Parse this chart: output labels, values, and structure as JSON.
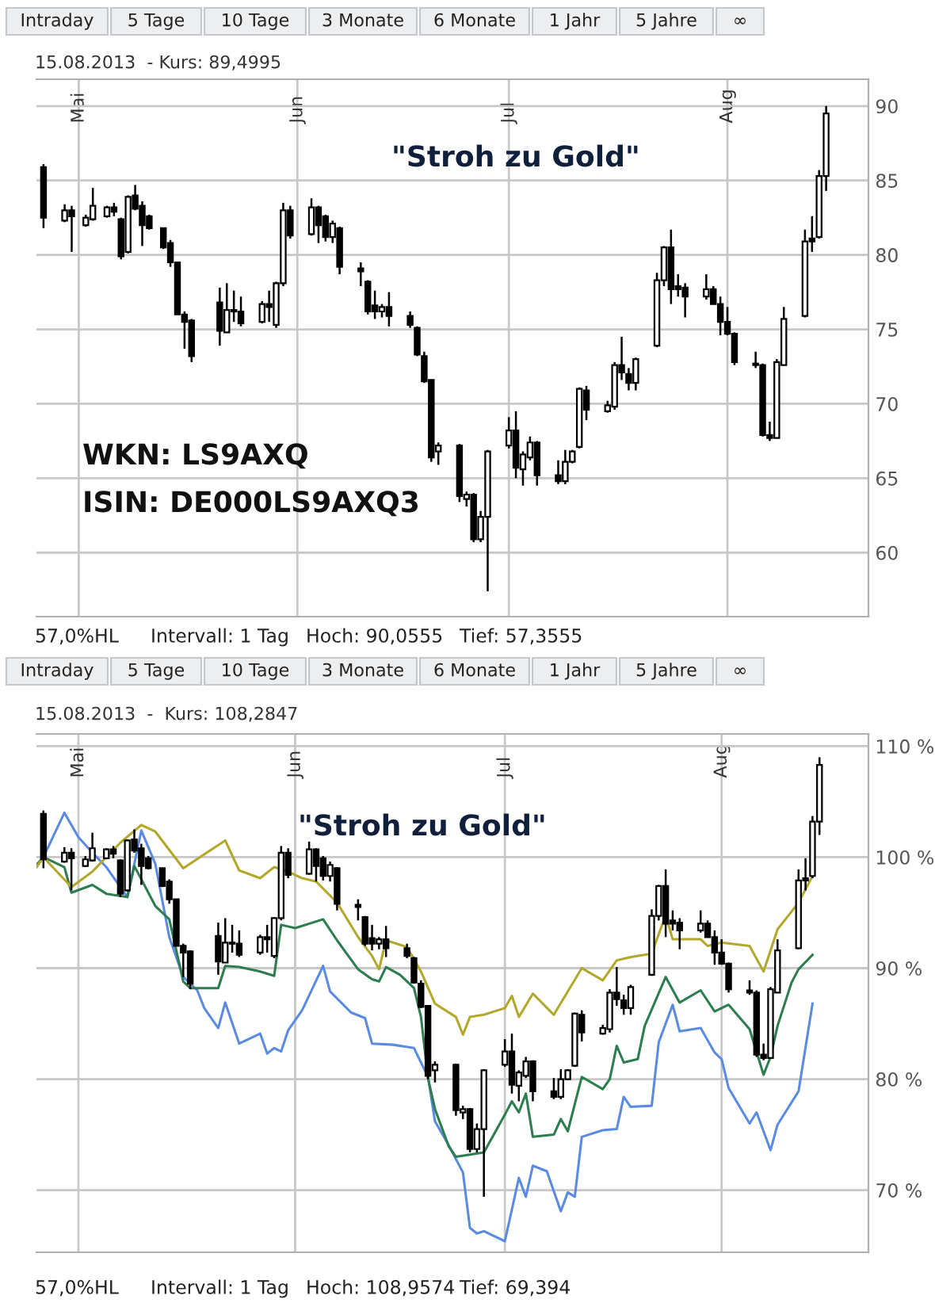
{
  "chart_data": [
    {
      "type": "candlestick",
      "title": "15.08.2013  - Kurs: 89,4995",
      "x": [
        "2013-04-26",
        "2013-04-29",
        "2013-04-30",
        "2013-05-02",
        "2013-05-03",
        "2013-05-05",
        "2013-05-06",
        "2013-05-07",
        "2013-05-08",
        "2013-05-09",
        "2013-05-10",
        "2013-05-11",
        "2013-05-13",
        "2013-05-14",
        "2013-05-15",
        "2013-05-16",
        "2013-05-17",
        "2013-05-21",
        "2013-05-22",
        "2013-05-23",
        "2013-05-24",
        "2013-05-27",
        "2013-05-28",
        "2013-05-29",
        "2013-05-30",
        "2013-05-31",
        "2013-06-03",
        "2013-06-04",
        "2013-06-05",
        "2013-06-06",
        "2013-06-07",
        "2013-06-10",
        "2013-06-11",
        "2013-06-12",
        "2013-06-13",
        "2013-06-14",
        "2013-06-17",
        "2013-06-18",
        "2013-06-19",
        "2013-06-20",
        "2013-06-21",
        "2013-06-24",
        "2013-06-25",
        "2013-06-26",
        "2013-06-27",
        "2013-06-28",
        "2013-07-01",
        "2013-07-02",
        "2013-07-03",
        "2013-07-04",
        "2013-07-05",
        "2013-07-08",
        "2013-07-09",
        "2013-07-10",
        "2013-07-11",
        "2013-07-12",
        "2013-07-15",
        "2013-07-16",
        "2013-07-17",
        "2013-07-18",
        "2013-07-19",
        "2013-07-22",
        "2013-07-23",
        "2013-07-24",
        "2013-07-25",
        "2013-07-26",
        "2013-07-29",
        "2013-07-30",
        "2013-07-31",
        "2013-08-01",
        "2013-08-02",
        "2013-08-05",
        "2013-08-06",
        "2013-08-07",
        "2013-08-08",
        "2013-08-09",
        "2013-08-12",
        "2013-08-13",
        "2013-08-14",
        "2013-08-15"
      ],
      "ohlc": [
        [
          85.9,
          86.1,
          81.8,
          82.5
        ],
        [
          82.3,
          83.4,
          82.2,
          83.0
        ],
        [
          83.0,
          83.3,
          80.2,
          82.6
        ],
        [
          82.0,
          82.7,
          81.9,
          82.5
        ],
        [
          82.4,
          84.5,
          82.3,
          83.3
        ],
        [
          82.6,
          83.3,
          82.5,
          83.2
        ],
        [
          83.2,
          83.5,
          82.6,
          82.9
        ],
        [
          82.4,
          82.5,
          79.7,
          79.9
        ],
        [
          80.2,
          84.0,
          80.1,
          83.9
        ],
        [
          84.0,
          84.7,
          83.0,
          83.1
        ],
        [
          83.3,
          83.6,
          80.6,
          82.0
        ],
        [
          82.6,
          82.7,
          81.7,
          81.8
        ],
        [
          81.8,
          81.8,
          80.4,
          80.5
        ],
        [
          80.8,
          81.0,
          79.2,
          79.5
        ],
        [
          79.5,
          79.5,
          76.0,
          76.0
        ],
        [
          76.0,
          76.2,
          73.7,
          75.5
        ],
        [
          75.6,
          75.7,
          72.8,
          73.2
        ],
        [
          76.8,
          77.8,
          73.9,
          74.9
        ],
        [
          74.8,
          78.1,
          74.8,
          76.3
        ],
        [
          76.2,
          77.6,
          75.5,
          76.3
        ],
        [
          76.2,
          77.2,
          75.2,
          75.4
        ],
        [
          75.5,
          76.9,
          75.4,
          76.7
        ],
        [
          76.7,
          77.6,
          75.5,
          76.5
        ],
        [
          75.3,
          78.2,
          75.1,
          78.1
        ],
        [
          78.1,
          83.5,
          77.9,
          83.0
        ],
        [
          83.0,
          83.3,
          81.1,
          81.3
        ],
        [
          81.4,
          83.8,
          81.3,
          83.2
        ],
        [
          83.2,
          83.3,
          80.8,
          82.0
        ],
        [
          82.6,
          82.7,
          80.9,
          81.2
        ],
        [
          81.2,
          82.3,
          80.8,
          82.1
        ],
        [
          81.8,
          81.9,
          78.7,
          79.2
        ],
        [
          79.1,
          79.5,
          77.9,
          78.9
        ],
        [
          78.2,
          78.3,
          76.0,
          76.2
        ],
        [
          76.6,
          77.6,
          75.7,
          76.2
        ],
        [
          76.2,
          76.7,
          75.8,
          76.5
        ],
        [
          76.5,
          77.5,
          75.2,
          75.9
        ],
        [
          75.9,
          76.2,
          75.1,
          75.3
        ],
        [
          75.1,
          75.2,
          73.2,
          73.3
        ],
        [
          73.2,
          73.5,
          71.4,
          71.5
        ],
        [
          71.6,
          71.6,
          66.1,
          66.4
        ],
        [
          66.8,
          67.4,
          65.9,
          67.2
        ],
        [
          67.2,
          67.3,
          63.4,
          63.8
        ],
        [
          63.6,
          64.1,
          63.1,
          63.9
        ],
        [
          63.9,
          64.0,
          60.7,
          60.9
        ],
        [
          60.9,
          62.8,
          60.7,
          62.4
        ],
        [
          62.4,
          66.9,
          57.4,
          66.8
        ],
        [
          67.2,
          69.1,
          67.0,
          68.2
        ],
        [
          68.2,
          69.5,
          65.0,
          65.7
        ],
        [
          65.6,
          66.8,
          64.5,
          66.6
        ],
        [
          66.4,
          67.8,
          66.2,
          67.4
        ],
        [
          67.4,
          67.5,
          64.5,
          65.2
        ],
        [
          65.2,
          66.2,
          64.6,
          64.8
        ],
        [
          64.8,
          66.9,
          64.6,
          66.1
        ],
        [
          66.1,
          66.9,
          66.0,
          66.8
        ],
        [
          67.1,
          71.1,
          67.0,
          71.0
        ],
        [
          70.9,
          71.2,
          68.9,
          69.6
        ],
        [
          69.5,
          70.2,
          69.4,
          69.9
        ],
        [
          69.8,
          72.8,
          69.6,
          72.6
        ],
        [
          72.6,
          74.5,
          71.6,
          72.1
        ],
        [
          72.0,
          72.4,
          70.9,
          71.4
        ],
        [
          71.4,
          73.1,
          70.9,
          73.0
        ],
        [
          73.9,
          78.8,
          73.8,
          78.3
        ],
        [
          78.3,
          80.6,
          77.9,
          80.5
        ],
        [
          80.5,
          81.7,
          76.7,
          77.7
        ],
        [
          77.9,
          78.7,
          77.2,
          77.7
        ],
        [
          77.8,
          78.1,
          75.8,
          77.2
        ],
        [
          77.2,
          78.7,
          77.0,
          77.7
        ],
        [
          77.7,
          77.9,
          76.7,
          76.7
        ],
        [
          76.7,
          77.2,
          74.6,
          75.5
        ],
        [
          75.5,
          76.5,
          74.6,
          74.7
        ],
        [
          74.7,
          74.8,
          72.6,
          72.8
        ],
        [
          72.7,
          73.5,
          72.4,
          72.6
        ],
        [
          72.6,
          72.7,
          67.8,
          67.9
        ],
        [
          67.9,
          68.8,
          67.5,
          67.7
        ],
        [
          67.7,
          73.0,
          67.7,
          72.8
        ],
        [
          72.6,
          76.5,
          72.6,
          75.7
        ],
        [
          75.9,
          81.7,
          75.8,
          80.9
        ],
        [
          81.1,
          82.6,
          80.2,
          80.9
        ],
        [
          81.2,
          85.7,
          81.1,
          85.3
        ],
        [
          85.3,
          90.0,
          84.3,
          89.5
        ]
      ],
      "xlim": [
        "2013-04-25",
        "2013-08-21"
      ],
      "xticks": [
        {
          "value": "2013-05-01",
          "label": "Mai"
        },
        {
          "value": "2013-06-01",
          "label": "Jun"
        },
        {
          "value": "2013-07-01",
          "label": "Jul"
        },
        {
          "value": "2013-08-01",
          "label": "Aug"
        }
      ],
      "ylim": [
        55.7,
        91.8
      ],
      "yticks": [
        60,
        65,
        70,
        75,
        80,
        85,
        90
      ],
      "grid": true,
      "annotations": [
        "Intraday",
        "5 Tage",
        "10 Tage",
        "3 Monate",
        "6 Monate",
        "1 Jahr",
        "5 Jahre",
        "∞",
        "57,0%HL",
        "Intervall: 1 Tag",
        "Hoch: 90,0555",
        "Tief: 57,3555",
        "\"Stroh zu Gold\"",
        "WKN: LS9AXQ",
        "ISIN: DE000LS9AXQ3"
      ]
    },
    {
      "type": "candlestick",
      "title": "15.08.2013  -  Kurs: 108,2847",
      "x": [
        "2013-04-26",
        "2013-04-29",
        "2013-04-30",
        "2013-05-02",
        "2013-05-03",
        "2013-05-05",
        "2013-05-06",
        "2013-05-07",
        "2013-05-08",
        "2013-05-09",
        "2013-05-10",
        "2013-05-11",
        "2013-05-13",
        "2013-05-14",
        "2013-05-15",
        "2013-05-16",
        "2013-05-17",
        "2013-05-21",
        "2013-05-22",
        "2013-05-23",
        "2013-05-24",
        "2013-05-27",
        "2013-05-28",
        "2013-05-29",
        "2013-05-30",
        "2013-05-31",
        "2013-06-03",
        "2013-06-04",
        "2013-06-05",
        "2013-06-06",
        "2013-06-07",
        "2013-06-10",
        "2013-06-11",
        "2013-06-12",
        "2013-06-13",
        "2013-06-14",
        "2013-06-17",
        "2013-06-18",
        "2013-06-19",
        "2013-06-20",
        "2013-06-21",
        "2013-06-24",
        "2013-06-25",
        "2013-06-26",
        "2013-06-27",
        "2013-06-28",
        "2013-07-01",
        "2013-07-02",
        "2013-07-03",
        "2013-07-04",
        "2013-07-05",
        "2013-07-08",
        "2013-07-09",
        "2013-07-10",
        "2013-07-11",
        "2013-07-12",
        "2013-07-15",
        "2013-07-16",
        "2013-07-17",
        "2013-07-18",
        "2013-07-19",
        "2013-07-22",
        "2013-07-23",
        "2013-07-24",
        "2013-07-25",
        "2013-07-26",
        "2013-07-29",
        "2013-07-30",
        "2013-07-31",
        "2013-08-01",
        "2013-08-02",
        "2013-08-05",
        "2013-08-06",
        "2013-08-07",
        "2013-08-08",
        "2013-08-09",
        "2013-08-12",
        "2013-08-13",
        "2013-08-14",
        "2013-08-15"
      ],
      "ohlc": [
        [
          103.9,
          104.2,
          99.0,
          99.8
        ],
        [
          99.6,
          100.9,
          99.5,
          100.4
        ],
        [
          100.4,
          100.8,
          97.0,
          99.9
        ],
        [
          99.2,
          100.1,
          99.1,
          99.8
        ],
        [
          99.7,
          102.2,
          99.6,
          100.8
        ],
        [
          99.9,
          100.8,
          99.8,
          100.7
        ],
        [
          100.7,
          101.0,
          99.9,
          100.3
        ],
        [
          99.7,
          99.8,
          96.4,
          96.7
        ],
        [
          97.0,
          101.6,
          96.9,
          101.5
        ],
        [
          101.6,
          102.5,
          100.4,
          100.6
        ],
        [
          100.8,
          101.2,
          97.5,
          99.2
        ],
        [
          99.9,
          100.1,
          98.9,
          99.0
        ],
        [
          99.0,
          99.0,
          97.3,
          97.4
        ],
        [
          97.8,
          98.0,
          95.8,
          96.2
        ],
        [
          96.2,
          96.2,
          92.0,
          92.0
        ],
        [
          92.0,
          92.2,
          89.2,
          91.4
        ],
        [
          91.5,
          91.6,
          88.1,
          88.6
        ],
        [
          92.9,
          94.1,
          89.4,
          90.6
        ],
        [
          90.5,
          94.5,
          90.5,
          92.3
        ],
        [
          92.2,
          93.9,
          91.4,
          92.3
        ],
        [
          92.2,
          93.4,
          91.0,
          91.2
        ],
        [
          91.4,
          93.0,
          91.2,
          92.8
        ],
        [
          92.8,
          93.9,
          91.4,
          92.6
        ],
        [
          91.1,
          94.6,
          90.9,
          94.5
        ],
        [
          94.5,
          101.0,
          94.3,
          100.4
        ],
        [
          100.4,
          100.8,
          98.1,
          98.4
        ],
        [
          98.5,
          101.4,
          98.4,
          100.7
        ],
        [
          100.7,
          100.8,
          97.8,
          99.2
        ],
        [
          99.9,
          100.1,
          97.9,
          98.3
        ],
        [
          98.3,
          99.6,
          97.8,
          99.3
        ],
        [
          99.0,
          99.1,
          95.2,
          95.8
        ],
        [
          95.7,
          96.2,
          94.3,
          95.5
        ],
        [
          94.6,
          94.7,
          92.0,
          92.2
        ],
        [
          92.7,
          93.9,
          91.6,
          92.2
        ],
        [
          92.2,
          92.8,
          91.7,
          92.6
        ],
        [
          92.6,
          93.8,
          91.0,
          91.8
        ],
        [
          91.8,
          92.2,
          90.9,
          91.1
        ],
        [
          90.9,
          91.0,
          88.6,
          88.7
        ],
        [
          88.6,
          88.9,
          86.4,
          86.5
        ],
        [
          86.6,
          86.6,
          80.0,
          80.3
        ],
        [
          80.8,
          81.6,
          79.7,
          81.3
        ],
        [
          81.3,
          81.4,
          76.7,
          77.2
        ],
        [
          77.0,
          77.6,
          76.4,
          77.3
        ],
        [
          77.3,
          77.4,
          73.4,
          73.7
        ],
        [
          73.7,
          76.0,
          73.4,
          75.5
        ],
        [
          75.5,
          80.9,
          69.4,
          80.8
        ],
        [
          81.3,
          83.6,
          81.1,
          82.5
        ],
        [
          82.5,
          84.1,
          78.7,
          79.5
        ],
        [
          79.4,
          80.8,
          78.0,
          80.6
        ],
        [
          80.3,
          82.0,
          80.1,
          81.6
        ],
        [
          81.6,
          81.7,
          78.0,
          78.9
        ],
        [
          78.9,
          80.1,
          78.2,
          78.4
        ],
        [
          78.4,
          80.9,
          78.2,
          80.0
        ],
        [
          80.0,
          80.9,
          79.9,
          80.8
        ],
        [
          81.2,
          86.0,
          81.1,
          85.9
        ],
        [
          85.8,
          86.2,
          83.4,
          84.2
        ],
        [
          84.1,
          84.9,
          84.0,
          84.6
        ],
        [
          84.5,
          88.1,
          84.2,
          87.8
        ],
        [
          87.8,
          90.1,
          86.6,
          87.2
        ],
        [
          87.1,
          87.6,
          85.8,
          86.4
        ],
        [
          86.4,
          88.5,
          85.8,
          88.3
        ],
        [
          89.4,
          95.3,
          89.3,
          94.7
        ],
        [
          94.7,
          97.5,
          94.3,
          97.4
        ],
        [
          97.4,
          98.9,
          92.8,
          94.0
        ],
        [
          94.3,
          95.2,
          93.4,
          94.0
        ],
        [
          94.1,
          94.5,
          91.7,
          93.4
        ],
        [
          93.4,
          95.2,
          93.2,
          94.0
        ],
        [
          94.0,
          94.3,
          92.8,
          92.8
        ],
        [
          92.8,
          93.4,
          90.3,
          91.4
        ],
        [
          91.4,
          92.6,
          90.3,
          90.4
        ],
        [
          90.4,
          90.5,
          87.8,
          88.1
        ],
        [
          88.0,
          88.9,
          87.6,
          87.8
        ],
        [
          87.8,
          88.0,
          82.0,
          82.2
        ],
        [
          82.2,
          83.2,
          81.7,
          81.9
        ],
        [
          81.9,
          88.3,
          81.9,
          88.1
        ],
        [
          87.8,
          92.6,
          87.8,
          91.6
        ],
        [
          91.8,
          98.9,
          91.7,
          97.9
        ],
        [
          98.1,
          99.9,
          97.0,
          97.9
        ],
        [
          98.3,
          103.7,
          98.1,
          103.2
        ],
        [
          103.2,
          109.0,
          102.0,
          108.3
        ]
      ],
      "series": [
        {
          "type": "line",
          "color": "#5b8be0",
          "x": [
            "2013-04-25",
            "2013-04-26",
            "2013-04-29",
            "2013-05-01",
            "2013-05-03",
            "2013-05-05",
            "2013-05-08",
            "2013-05-10",
            "2013-05-12",
            "2013-05-14",
            "2013-05-16",
            "2013-05-18",
            "2013-05-19",
            "2013-05-21",
            "2013-05-22",
            "2013-05-24",
            "2013-05-27",
            "2013-05-28",
            "2013-05-29",
            "2013-05-30",
            "2013-05-31",
            "2013-06-02",
            "2013-06-05",
            "2013-06-06",
            "2013-06-09",
            "2013-06-11",
            "2013-06-12",
            "2013-06-15",
            "2013-06-18",
            "2013-06-20",
            "2013-06-21",
            "2013-06-23",
            "2013-06-25",
            "2013-06-26",
            "2013-06-27",
            "2013-06-28",
            "2013-07-01",
            "2013-07-03",
            "2013-07-04",
            "2013-07-05",
            "2013-07-07",
            "2013-07-09",
            "2013-07-10",
            "2013-07-11",
            "2013-07-12",
            "2013-07-15",
            "2013-07-17",
            "2013-07-18",
            "2013-07-19",
            "2013-07-22",
            "2013-07-23",
            "2013-07-25",
            "2013-07-26",
            "2013-07-29",
            "2013-07-31",
            "2013-08-01",
            "2013-08-02",
            "2013-08-05",
            "2013-08-06",
            "2013-08-08",
            "2013-08-09",
            "2013-08-12",
            "2013-08-14"
          ],
          "values": [
            99.1,
            100.0,
            104.0,
            101.8,
            100.4,
            99.1,
            96.4,
            102.4,
            99.4,
            92.8,
            89.2,
            88.0,
            86.4,
            84.6,
            86.9,
            83.2,
            84.1,
            82.3,
            82.8,
            82.5,
            84.4,
            86.2,
            90.2,
            87.9,
            86.0,
            85.5,
            83.2,
            83.1,
            82.8,
            80.2,
            76.2,
            74.0,
            71.6,
            66.6,
            66.1,
            66.3,
            65.4,
            71.1,
            69.4,
            72.2,
            71.7,
            68.1,
            69.8,
            69.4,
            74.8,
            75.4,
            75.5,
            78.4,
            77.5,
            77.6,
            83.3,
            86.7,
            84.3,
            84.6,
            82.4,
            81.8,
            79.2,
            76.0,
            77.0,
            73.6,
            75.9,
            78.9,
            86.8
          ]
        },
        {
          "type": "line",
          "color": "#2e7d4f",
          "x": [
            "2013-04-25",
            "2013-04-26",
            "2013-04-29",
            "2013-04-30",
            "2013-05-03",
            "2013-05-05",
            "2013-05-08",
            "2013-05-09",
            "2013-05-12",
            "2013-05-14",
            "2013-05-16",
            "2013-05-17",
            "2013-05-21",
            "2013-05-22",
            "2013-05-24",
            "2013-05-27",
            "2013-05-29",
            "2013-05-30",
            "2013-06-01",
            "2013-06-05",
            "2013-06-07",
            "2013-06-10",
            "2013-06-12",
            "2013-06-13",
            "2013-06-14",
            "2013-06-16",
            "2013-06-18",
            "2013-06-19",
            "2013-06-20",
            "2013-06-21",
            "2013-06-23",
            "2013-06-24",
            "2013-06-26",
            "2013-06-28",
            "2013-07-01",
            "2013-07-02",
            "2013-07-03",
            "2013-07-04",
            "2013-07-05",
            "2013-07-08",
            "2013-07-09",
            "2013-07-10",
            "2013-07-12",
            "2013-07-15",
            "2013-07-16",
            "2013-07-17",
            "2013-07-18",
            "2013-07-20",
            "2013-07-21",
            "2013-07-24",
            "2013-07-26",
            "2013-07-29",
            "2013-07-31",
            "2013-08-02",
            "2013-08-05",
            "2013-08-07",
            "2013-08-08",
            "2013-08-09",
            "2013-08-11",
            "2013-08-12",
            "2013-08-14"
          ],
          "values": [
            99.3,
            100.0,
            99.1,
            96.8,
            97.5,
            96.7,
            96.4,
            99.2,
            95.6,
            94.4,
            88.8,
            88.2,
            88.2,
            90.2,
            90.1,
            89.7,
            89.3,
            93.9,
            93.6,
            94.4,
            92.5,
            89.9,
            89.0,
            88.8,
            90.1,
            89.4,
            88.2,
            85.6,
            80.1,
            77.3,
            73.9,
            73.0,
            73.2,
            73.4,
            76.8,
            78.0,
            77.0,
            78.7,
            74.8,
            75.0,
            76.4,
            75.3,
            80.2,
            79.1,
            80.0,
            83.0,
            81.5,
            81.8,
            84.8,
            89.2,
            86.9,
            88.0,
            86.1,
            86.7,
            84.5,
            80.4,
            82.0,
            84.8,
            88.7,
            89.9,
            91.2
          ]
        },
        {
          "type": "line",
          "color": "#b3a82c",
          "x": [
            "2013-04-25",
            "2013-04-26",
            "2013-04-30",
            "2013-05-03",
            "2013-05-07",
            "2013-05-10",
            "2013-05-12",
            "2013-05-16",
            "2013-05-22",
            "2013-05-24",
            "2013-05-27",
            "2013-05-29",
            "2013-05-31",
            "2013-06-02",
            "2013-06-04",
            "2013-06-07",
            "2013-06-10",
            "2013-06-12",
            "2013-06-13",
            "2013-06-14",
            "2013-06-17",
            "2013-06-19",
            "2013-06-21",
            "2013-06-24",
            "2013-06-25",
            "2013-06-26",
            "2013-06-28",
            "2013-07-01",
            "2013-07-02",
            "2013-07-03",
            "2013-07-05",
            "2013-07-08",
            "2013-07-12",
            "2013-07-15",
            "2013-07-17",
            "2013-07-19",
            "2013-07-22",
            "2013-07-24",
            "2013-07-25",
            "2013-07-29",
            "2013-07-30",
            "2013-08-01",
            "2013-08-05",
            "2013-08-07",
            "2013-08-09",
            "2013-08-12",
            "2013-08-14"
          ],
          "values": [
            99.1,
            100.0,
            97.3,
            98.7,
            101.3,
            102.9,
            102.3,
            99.0,
            101.5,
            98.8,
            98.1,
            99.1,
            98.7,
            98.1,
            97.8,
            95.9,
            92.8,
            91.1,
            89.9,
            92.5,
            91.9,
            89.7,
            86.8,
            85.6,
            84.0,
            85.6,
            85.8,
            86.4,
            87.5,
            85.6,
            87.7,
            85.8,
            90.0,
            88.9,
            90.7,
            91.0,
            91.3,
            94.8,
            92.6,
            92.6,
            92.0,
            92.3,
            92.0,
            89.7,
            93.5,
            95.9,
            98.3
          ]
        }
      ],
      "xlim": [
        "2013-04-25",
        "2013-08-22"
      ],
      "xticks": [
        {
          "value": "2013-05-01",
          "label": "Mai"
        },
        {
          "value": "2013-06-01",
          "label": "Jun"
        },
        {
          "value": "2013-07-01",
          "label": "Jul"
        },
        {
          "value": "2013-08-01",
          "label": "Aug"
        }
      ],
      "ylim": [
        64.4,
        111.1
      ],
      "yticks": [
        {
          "value": 70,
          "label": "70 %"
        },
        {
          "value": 80,
          "label": "80 %"
        },
        {
          "value": 90,
          "label": "90 %"
        },
        {
          "value": 100,
          "label": "100 %"
        },
        {
          "value": 110,
          "label": "110 %"
        }
      ],
      "grid": true,
      "annotations": [
        "Intraday",
        "5 Tage",
        "10 Tage",
        "3 Monate",
        "6 Monate",
        "1 Jahr",
        "5 Jahre",
        "∞",
        "57,0%HL",
        "Intervall: 1 Tag",
        "Hoch: 108,9574",
        "Tief: 69,394",
        "\"Stroh zu Gold\""
      ]
    }
  ]
}
